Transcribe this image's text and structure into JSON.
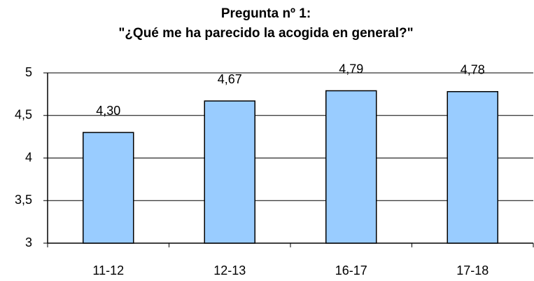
{
  "chart_data": {
    "type": "bar",
    "title": [
      "Pregunta nº 1:",
      "\"¿Qué me ha parecido la acogida en general?\""
    ],
    "categories": [
      "11-12",
      "12-13",
      "16-17",
      "17-18"
    ],
    "values": [
      4.3,
      4.67,
      4.79,
      4.78
    ],
    "value_labels": [
      "4,30",
      "4,67",
      "4,79",
      "4,78"
    ],
    "color": "#99ccff",
    "ylim": [
      3,
      5
    ],
    "yticks": [
      3,
      {
        "value": 3.5,
        "label": "3,5"
      },
      4,
      {
        "value": 4.5,
        "label": "4,5"
      },
      5
    ],
    "grid": true
  }
}
